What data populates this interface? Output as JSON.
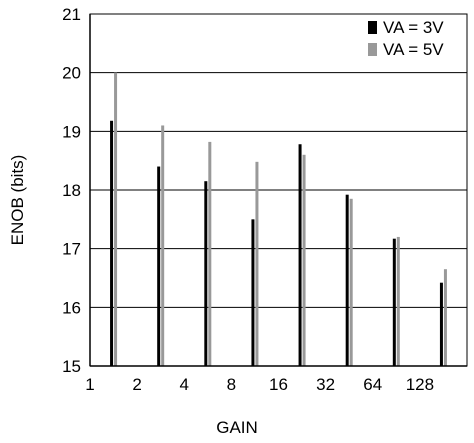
{
  "chart_data": {
    "type": "bar",
    "xlabel": "GAIN",
    "ylabel": "ENOB (bits)",
    "ylim": [
      15,
      21
    ],
    "yticks": [
      15,
      16,
      17,
      18,
      19,
      20,
      21
    ],
    "grid": true,
    "legend_position": "top-right",
    "x_origin_label": "1",
    "categories": [
      "2",
      "4",
      "8",
      "16",
      "32",
      "64",
      "128",
      ""
    ],
    "series": [
      {
        "name": "VA = 3V",
        "color": "#000000",
        "values": [
          19.18,
          18.4,
          18.15,
          17.5,
          18.78,
          17.92,
          17.17,
          16.42
        ]
      },
      {
        "name": "VA = 5V",
        "color": "#999999",
        "values": [
          20.0,
          19.1,
          18.82,
          18.48,
          18.6,
          17.85,
          17.2,
          16.65
        ]
      }
    ]
  }
}
